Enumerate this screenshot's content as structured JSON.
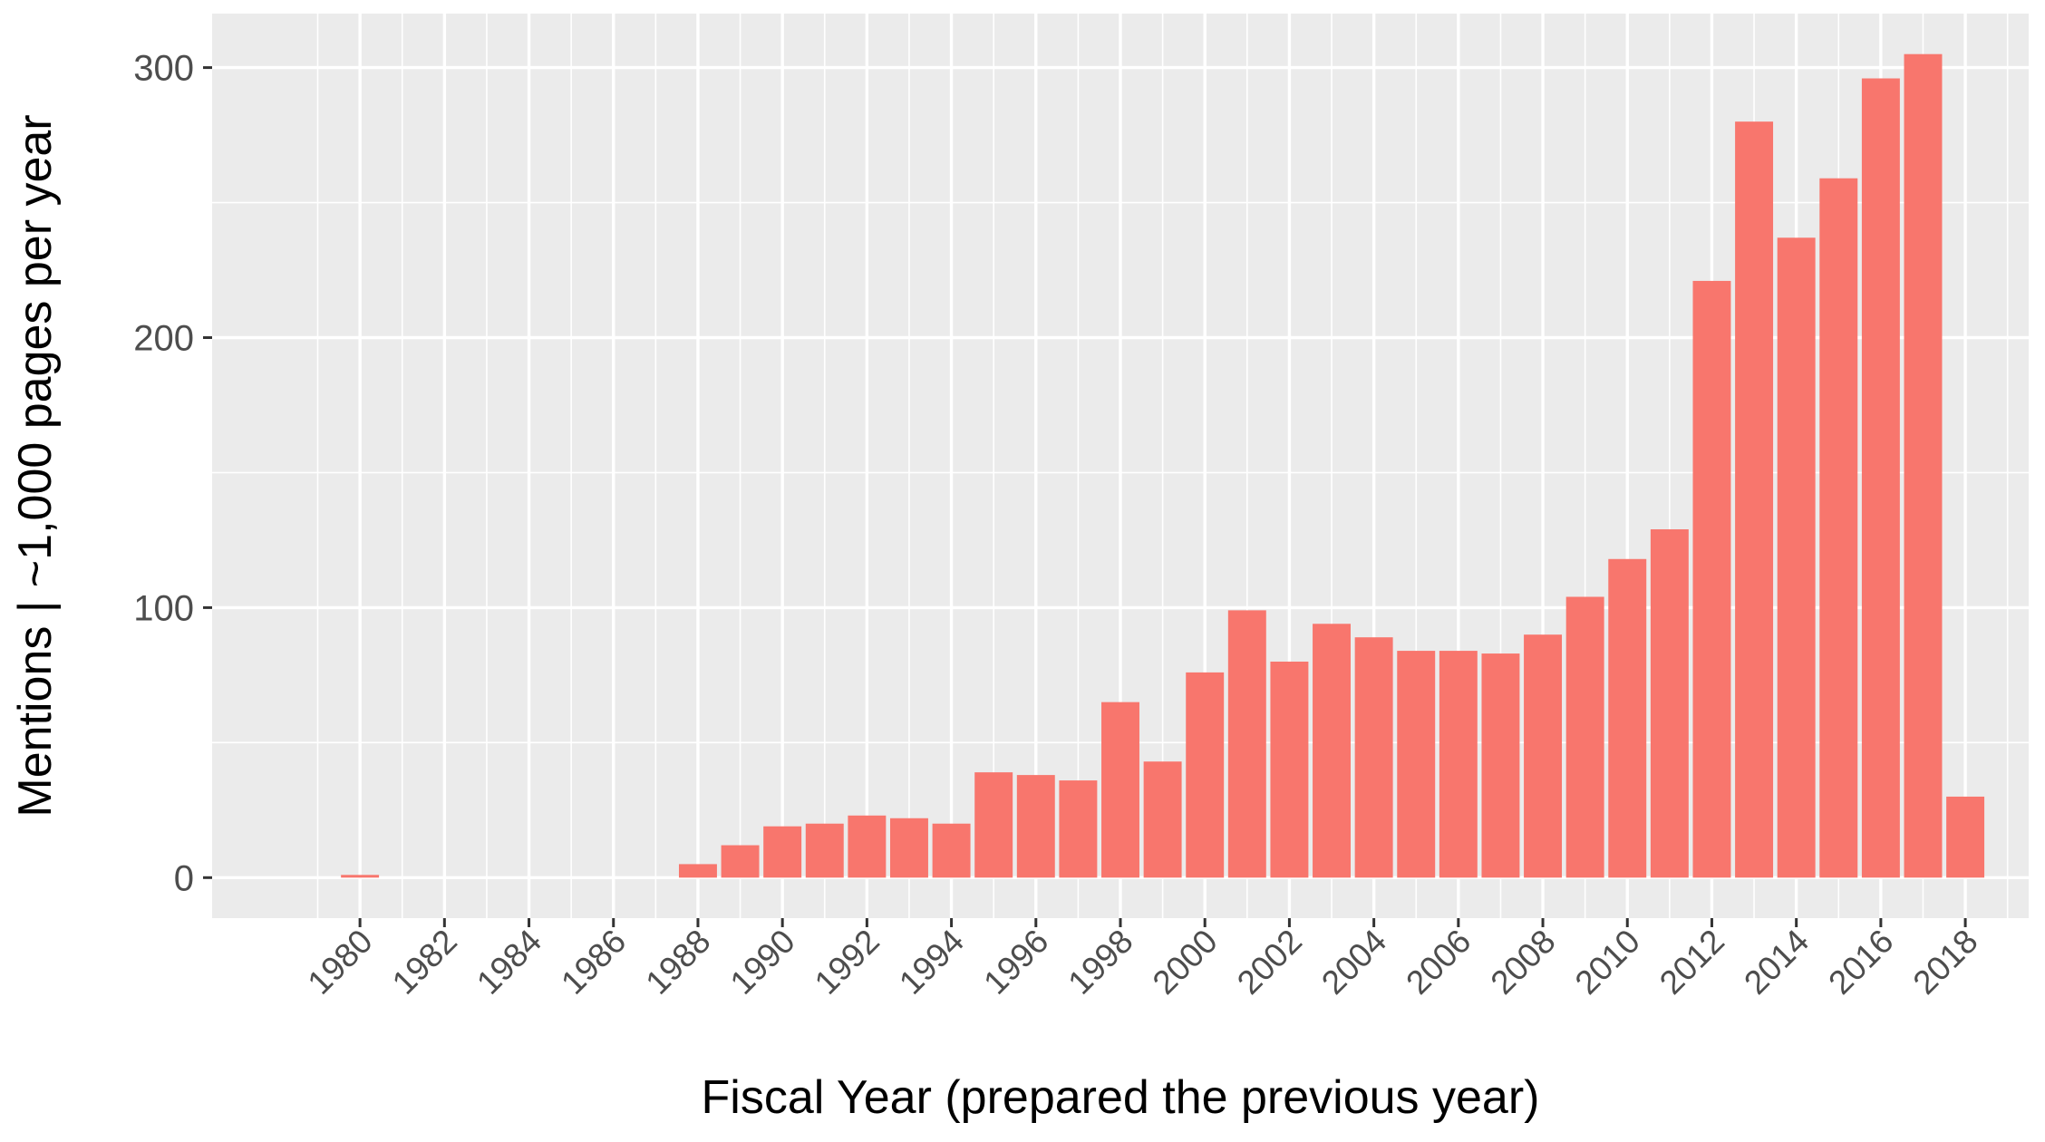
{
  "chart_data": {
    "type": "bar",
    "title": "",
    "xlabel": "Fiscal Year (prepared the previous year)",
    "ylabel": "Mentions | ~1,000 pages per year",
    "x": [
      1978,
      1979,
      1980,
      1981,
      1982,
      1983,
      1984,
      1985,
      1986,
      1987,
      1988,
      1989,
      1990,
      1991,
      1992,
      1993,
      1994,
      1995,
      1996,
      1997,
      1998,
      1999,
      2000,
      2001,
      2002,
      2003,
      2004,
      2005,
      2006,
      2007,
      2008,
      2009,
      2010,
      2011,
      2012,
      2013,
      2014,
      2015,
      2016,
      2017,
      2018
    ],
    "values": [
      0,
      1,
      0,
      0,
      0,
      0,
      0,
      0,
      0,
      5,
      12,
      19,
      20,
      23,
      22,
      20,
      39,
      38,
      36,
      65,
      43,
      76,
      99,
      80,
      94,
      89,
      84,
      84,
      83,
      90,
      104,
      118,
      129,
      221,
      280,
      237,
      259,
      296,
      305,
      30,
      0
    ],
    "x_tick_labels": [
      "1980",
      "1982",
      "1984",
      "1986",
      "1988",
      "1990",
      "1992",
      "1994",
      "1996",
      "1998",
      "2000",
      "2002",
      "2004",
      "2006",
      "2008",
      "2010",
      "2012",
      "2014",
      "2016",
      "2018"
    ],
    "x_tick_values": [
      1979,
      1981,
      1983,
      1985,
      1987,
      1989,
      1991,
      1993,
      1995,
      1997,
      1999,
      2001,
      2003,
      2005,
      2007,
      2009,
      2011,
      2013,
      2015,
      2017
    ],
    "y_tick_labels": [
      "0",
      "100",
      "200",
      "300"
    ],
    "y_ticks": [
      0,
      100,
      200,
      300
    ],
    "ylim": [
      -15,
      320
    ],
    "xlim": [
      1975.5,
      2018.5
    ],
    "grid": true,
    "legend": "none",
    "colors": {
      "bar": "#f8766d",
      "panel": "#ebebeb",
      "grid": "#ffffff",
      "tick": "#333333"
    }
  }
}
